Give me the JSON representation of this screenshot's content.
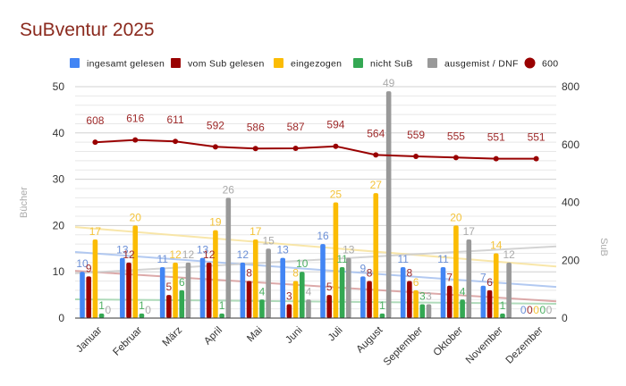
{
  "chart_data": {
    "type": "bar",
    "title": "SuBventur 2025",
    "categories": [
      "Januar",
      "Februar",
      "März",
      "April",
      "Mai",
      "Juni",
      "Juli",
      "August",
      "September",
      "Oktober",
      "November",
      "Dezember"
    ],
    "series": [
      {
        "name": "ingesamt gelesen",
        "color": "#4285f4",
        "label_color": "#6b8fd6",
        "values": [
          10,
          13,
          11,
          13,
          12,
          13,
          16,
          9,
          11,
          11,
          7,
          0
        ]
      },
      {
        "name": "vom Sub gelesen",
        "color": "#990000",
        "label_color": "#9e2a2a",
        "values": [
          9,
          12,
          5,
          12,
          8,
          3,
          5,
          8,
          8,
          7,
          6,
          0
        ]
      },
      {
        "name": "eingezogen",
        "color": "#fbbc04",
        "label_color": "#f4c33a",
        "values": [
          17,
          20,
          12,
          19,
          17,
          8,
          25,
          27,
          6,
          20,
          14,
          0
        ]
      },
      {
        "name": "nicht SuB",
        "color": "#34a853",
        "label_color": "#4caf62",
        "values": [
          1,
          1,
          6,
          1,
          4,
          10,
          11,
          1,
          3,
          4,
          1,
          0
        ]
      },
      {
        "name": "ausgemist / DNF",
        "color": "#999999",
        "label_color": "#aaaaaa",
        "values": [
          0,
          0,
          12,
          26,
          15,
          4,
          13,
          49,
          3,
          17,
          12,
          0
        ]
      }
    ],
    "line_series": {
      "name": "600",
      "axis": "right",
      "color": "#990000",
      "label_color": "#9e2a2a",
      "values": [
        608,
        616,
        611,
        592,
        586,
        587,
        594,
        564,
        559,
        555,
        551,
        551
      ]
    },
    "trendlines": true,
    "ylabel": "Bücher",
    "y2label": "SuB",
    "ylim": [
      0,
      50
    ],
    "y2lim": [
      0,
      800
    ],
    "yticks": [
      "0",
      "10",
      "20",
      "30",
      "40",
      "50"
    ],
    "y2ticks": [
      "0",
      "200",
      "400",
      "600",
      "800"
    ],
    "grid": true,
    "legend_position": "top"
  }
}
